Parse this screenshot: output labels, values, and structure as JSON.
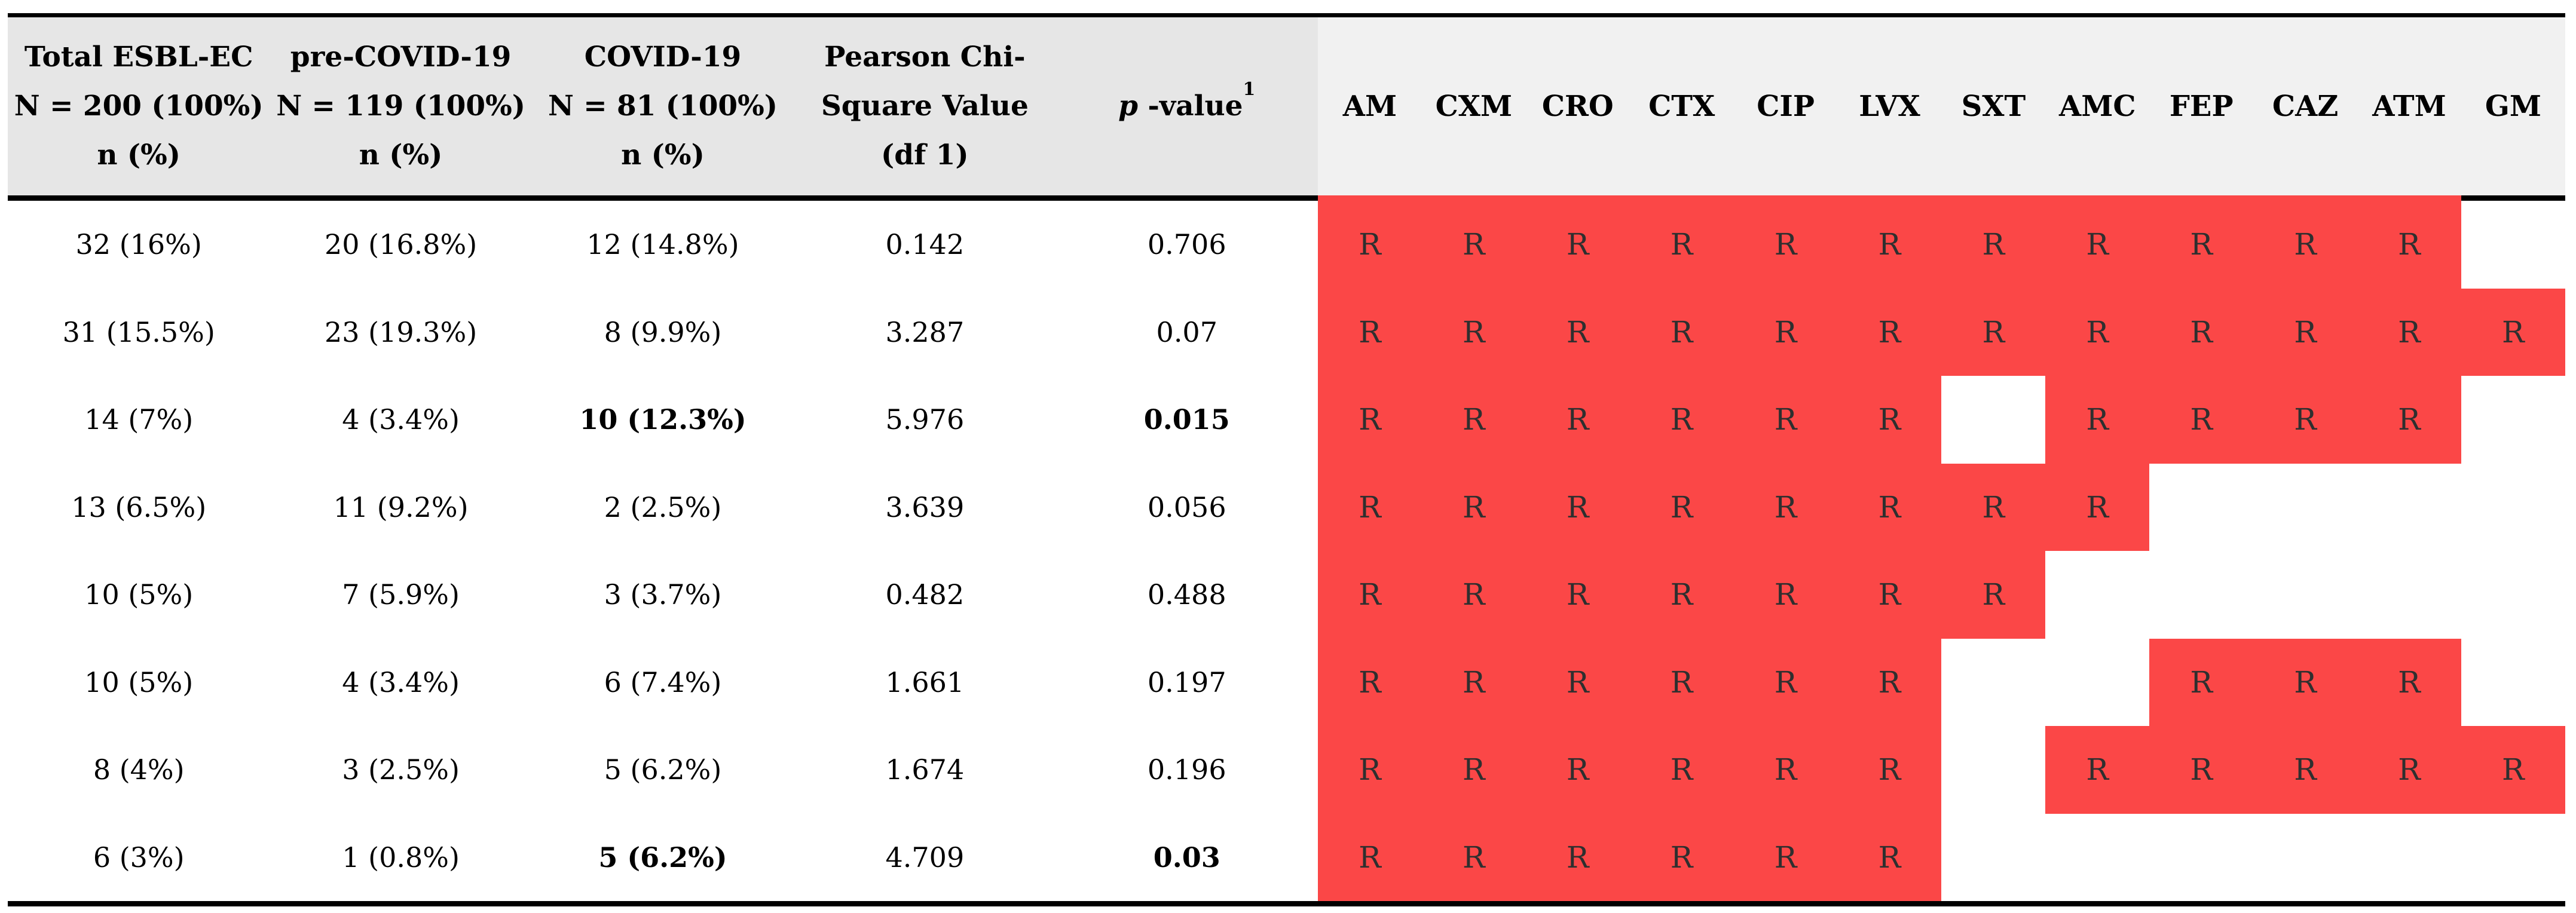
{
  "table": {
    "header": {
      "stat_columns": [
        {
          "key": "total",
          "lines": [
            "Total ESBL-EC",
            "N = 200 (100%)",
            "n (%)"
          ]
        },
        {
          "key": "pre_covid",
          "lines": [
            "pre-COVID-19",
            "N = 119 (100%)",
            "n (%)"
          ]
        },
        {
          "key": "covid",
          "lines": [
            "COVID-19",
            "N = 81 (100%)",
            "n (%)"
          ]
        },
        {
          "key": "chi_square",
          "lines": [
            "Pearson Chi-",
            "Square Value",
            "(df 1)"
          ]
        },
        {
          "key": "p_value",
          "italic": "p",
          "text": " -value",
          "sup": "1"
        }
      ],
      "antibiotics": [
        "AM",
        "CXM",
        "CRO",
        "CTX",
        "CIP",
        "LVX",
        "SXT",
        "AMC",
        "FEP",
        "CAZ",
        "ATM",
        "GM"
      ]
    },
    "resistant_marker": "R",
    "rows": [
      {
        "cells": [
          "32 (16%)",
          "20 (16.8%)",
          "12 (14.8%)",
          "0.142",
          "0.706"
        ],
        "bold": [
          0,
          0,
          0,
          0,
          0
        ],
        "resistance": [
          1,
          1,
          1,
          1,
          1,
          1,
          1,
          1,
          1,
          1,
          1,
          0
        ]
      },
      {
        "cells": [
          "31 (15.5%)",
          "23 (19.3%)",
          "8 (9.9%)",
          "3.287",
          "0.07"
        ],
        "bold": [
          0,
          0,
          0,
          0,
          0
        ],
        "resistance": [
          1,
          1,
          1,
          1,
          1,
          1,
          1,
          1,
          1,
          1,
          1,
          1
        ]
      },
      {
        "cells": [
          "14 (7%)",
          "4 (3.4%)",
          "10 (12.3%)",
          "5.976",
          "0.015"
        ],
        "bold": [
          0,
          0,
          1,
          0,
          1
        ],
        "resistance": [
          1,
          1,
          1,
          1,
          1,
          1,
          0,
          1,
          1,
          1,
          1,
          0
        ]
      },
      {
        "cells": [
          "13 (6.5%)",
          "11 (9.2%)",
          "2 (2.5%)",
          "3.639",
          "0.056"
        ],
        "bold": [
          0,
          0,
          0,
          0,
          0
        ],
        "resistance": [
          1,
          1,
          1,
          1,
          1,
          1,
          1,
          1,
          0,
          0,
          0,
          0
        ]
      },
      {
        "cells": [
          "10 (5%)",
          "7 (5.9%)",
          "3 (3.7%)",
          "0.482",
          "0.488"
        ],
        "bold": [
          0,
          0,
          0,
          0,
          0
        ],
        "resistance": [
          1,
          1,
          1,
          1,
          1,
          1,
          1,
          0,
          0,
          0,
          0,
          0
        ]
      },
      {
        "cells": [
          "10 (5%)",
          "4 (3.4%)",
          "6 (7.4%)",
          "1.661",
          "0.197"
        ],
        "bold": [
          0,
          0,
          0,
          0,
          0
        ],
        "resistance": [
          1,
          1,
          1,
          1,
          1,
          1,
          0,
          0,
          1,
          1,
          1,
          0
        ]
      },
      {
        "cells": [
          "8 (4%)",
          "3 (2.5%)",
          "5 (6.2%)",
          "1.674",
          "0.196"
        ],
        "bold": [
          0,
          0,
          0,
          0,
          0
        ],
        "resistance": [
          1,
          1,
          1,
          1,
          1,
          1,
          0,
          1,
          1,
          1,
          1,
          1
        ]
      },
      {
        "cells": [
          "6 (3%)",
          "1 (0.8%)",
          "5 (6.2%)",
          "4.709",
          "0.03"
        ],
        "bold": [
          0,
          0,
          1,
          0,
          1
        ],
        "resistance": [
          1,
          1,
          1,
          1,
          1,
          1,
          0,
          0,
          0,
          0,
          0,
          0
        ]
      }
    ],
    "colors": {
      "resistant_bg": "#FB4747",
      "header_left_bg": "#E6E6E6",
      "header_right_bg": "#F1F1F1",
      "rule": "#000000",
      "marker_text": "#2F2F2F"
    }
  }
}
